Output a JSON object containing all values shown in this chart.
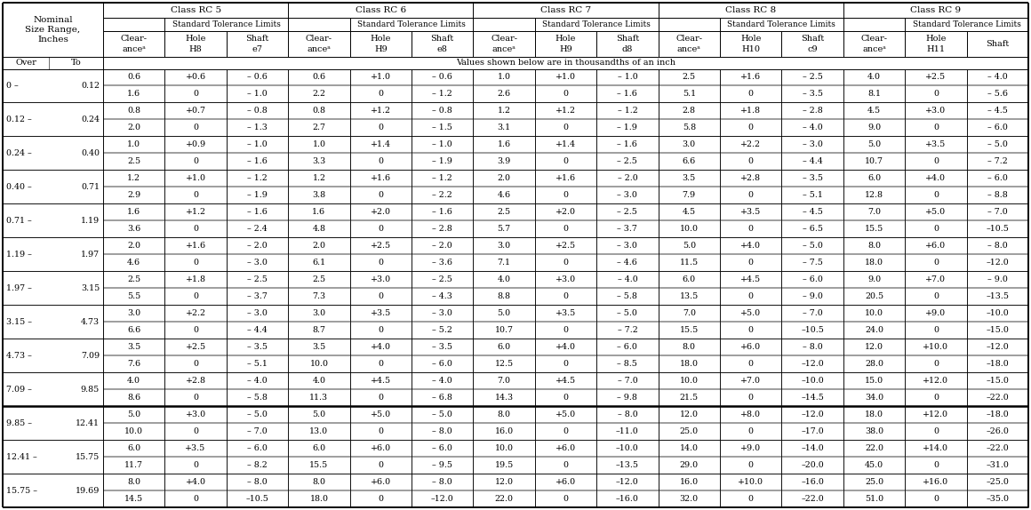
{
  "classes": [
    "Class RC 5",
    "Class RC 6",
    "Class RC 7",
    "Class RC 8",
    "Class RC 9"
  ],
  "std_tol": "Standard Tolerance Limits",
  "note": "Values shown below are in thousandths of an inch",
  "col_sub_headers": [
    [
      "Clear-\nanceᵃ",
      "Hole\nH8",
      "Shaft\ne7"
    ],
    [
      "Clear-\nanceᵃ",
      "Hole\nH9",
      "Shaft\ne8"
    ],
    [
      "Clear-\nanceᵃ",
      "Hole\nH9",
      "Shaft\nd8"
    ],
    [
      "Clear-\nanceᵃ",
      "Hole\nH10",
      "Shaft\nc9"
    ],
    [
      "Clear-\nanceᵃ",
      "Hole\nH11",
      "Shaft"
    ]
  ],
  "row_ranges": [
    [
      "0 –",
      "0.12"
    ],
    [
      "0.12 –",
      "0.24"
    ],
    [
      "0.24 –",
      "0.40"
    ],
    [
      "0.40 –",
      "0.71"
    ],
    [
      "0.71 –",
      "1.19"
    ],
    [
      "1.19 –",
      "1.97"
    ],
    [
      "1.97 –",
      "3.15"
    ],
    [
      "3.15 –",
      "4.73"
    ],
    [
      "4.73 –",
      "7.09"
    ],
    [
      "7.09 –",
      "9.85"
    ],
    [
      "9.85 –",
      "12.41"
    ],
    [
      "12.41 –",
      "15.75"
    ],
    [
      "15.75 –",
      "19.69"
    ]
  ],
  "data": [
    [
      "0.6",
      "1.6",
      "+0.6",
      "0",
      "– 0.6",
      "– 1.0",
      "0.6",
      "2.2",
      "+1.0",
      "0",
      "– 0.6",
      "– 1.2",
      "1.0",
      "2.6",
      "+1.0",
      "0",
      "– 1.0",
      "– 1.6",
      "2.5",
      "5.1",
      "+1.6",
      "0",
      "– 2.5",
      "– 3.5",
      "4.0",
      "8.1",
      "+2.5",
      "0",
      "– 4.0",
      "– 5.6"
    ],
    [
      "0.8",
      "2.0",
      "+0.7",
      "0",
      "– 0.8",
      "– 1.3",
      "0.8",
      "2.7",
      "+1.2",
      "0",
      "– 0.8",
      "– 1.5",
      "1.2",
      "3.1",
      "+1.2",
      "0",
      "– 1.2",
      "– 1.9",
      "2.8",
      "5.8",
      "+1.8",
      "0",
      "– 2.8",
      "– 4.0",
      "4.5",
      "9.0",
      "+3.0",
      "0",
      "– 4.5",
      "– 6.0"
    ],
    [
      "1.0",
      "2.5",
      "+0.9",
      "0",
      "– 1.0",
      "– 1.6",
      "1.0",
      "3.3",
      "+1.4",
      "0",
      "– 1.0",
      "– 1.9",
      "1.6",
      "3.9",
      "+1.4",
      "0",
      "– 1.6",
      "– 2.5",
      "3.0",
      "6.6",
      "+2.2",
      "0",
      "– 3.0",
      "– 4.4",
      "5.0",
      "10.7",
      "+3.5",
      "0",
      "– 5.0",
      "– 7.2"
    ],
    [
      "1.2",
      "2.9",
      "+1.0",
      "0",
      "– 1.2",
      "– 1.9",
      "1.2",
      "3.8",
      "+1.6",
      "0",
      "– 1.2",
      "– 2.2",
      "2.0",
      "4.6",
      "+1.6",
      "0",
      "– 2.0",
      "– 3.0",
      "3.5",
      "7.9",
      "+2.8",
      "0",
      "– 3.5",
      "– 5.1",
      "6.0",
      "12.8",
      "+4.0",
      "0",
      "– 6.0",
      "– 8.8"
    ],
    [
      "1.6",
      "3.6",
      "+1.2",
      "0",
      "– 1.6",
      "– 2.4",
      "1.6",
      "4.8",
      "+2.0",
      "0",
      "– 1.6",
      "– 2.8",
      "2.5",
      "5.7",
      "+2.0",
      "0",
      "– 2.5",
      "– 3.7",
      "4.5",
      "10.0",
      "+3.5",
      "0",
      "– 4.5",
      "– 6.5",
      "7.0",
      "15.5",
      "+5.0",
      "0",
      "– 7.0",
      "–10.5"
    ],
    [
      "2.0",
      "4.6",
      "+1.6",
      "0",
      "– 2.0",
      "– 3.0",
      "2.0",
      "6.1",
      "+2.5",
      "0",
      "– 2.0",
      "– 3.6",
      "3.0",
      "7.1",
      "+2.5",
      "0",
      "– 3.0",
      "– 4.6",
      "5.0",
      "11.5",
      "+4.0",
      "0",
      "– 5.0",
      "– 7.5",
      "8.0",
      "18.0",
      "+6.0",
      "0",
      "– 8.0",
      "–12.0"
    ],
    [
      "2.5",
      "5.5",
      "+1.8",
      "0",
      "– 2.5",
      "– 3.7",
      "2.5",
      "7.3",
      "+3.0",
      "0",
      "– 2.5",
      "– 4.3",
      "4.0",
      "8.8",
      "+3.0",
      "0",
      "– 4.0",
      "– 5.8",
      "6.0",
      "13.5",
      "+4.5",
      "0",
      "– 6.0",
      "– 9.0",
      "9.0",
      "20.5",
      "+7.0",
      "0",
      "– 9.0",
      "–13.5"
    ],
    [
      "3.0",
      "6.6",
      "+2.2",
      "0",
      "– 3.0",
      "– 4.4",
      "3.0",
      "8.7",
      "+3.5",
      "0",
      "– 3.0",
      "– 5.2",
      "5.0",
      "10.7",
      "+3.5",
      "0",
      "– 5.0",
      "– 7.2",
      "7.0",
      "15.5",
      "+5.0",
      "0",
      "– 7.0",
      "–10.5",
      "10.0",
      "24.0",
      "+9.0",
      "0",
      "–10.0",
      "–15.0"
    ],
    [
      "3.5",
      "7.6",
      "+2.5",
      "0",
      "– 3.5",
      "– 5.1",
      "3.5",
      "10.0",
      "+4.0",
      "0",
      "– 3.5",
      "– 6.0",
      "6.0",
      "12.5",
      "+4.0",
      "0",
      "– 6.0",
      "– 8.5",
      "8.0",
      "18.0",
      "+6.0",
      "0",
      "– 8.0",
      "–12.0",
      "12.0",
      "28.0",
      "+10.0",
      "0",
      "–12.0",
      "–18.0"
    ],
    [
      "4.0",
      "8.6",
      "+2.8",
      "0",
      "– 4.0",
      "– 5.8",
      "4.0",
      "11.3",
      "+4.5",
      "0",
      "– 4.0",
      "– 6.8",
      "7.0",
      "14.3",
      "+4.5",
      "0",
      "– 7.0",
      "– 9.8",
      "10.0",
      "21.5",
      "+7.0",
      "0",
      "–10.0",
      "–14.5",
      "15.0",
      "34.0",
      "+12.0",
      "0",
      "–15.0",
      "–22.0"
    ],
    [
      "5.0",
      "10.0",
      "+3.0",
      "0",
      "– 5.0",
      "– 7.0",
      "5.0",
      "13.0",
      "+5.0",
      "0",
      "– 5.0",
      "– 8.0",
      "8.0",
      "16.0",
      "+5.0",
      "0",
      "– 8.0",
      "–11.0",
      "12.0",
      "25.0",
      "+8.0",
      "0",
      "–12.0",
      "–17.0",
      "18.0",
      "38.0",
      "+12.0",
      "0",
      "–18.0",
      "–26.0"
    ],
    [
      "6.0",
      "11.7",
      "+3.5",
      "0",
      "– 6.0",
      "– 8.2",
      "6.0",
      "15.5",
      "+6.0",
      "0",
      "– 6.0",
      "– 9.5",
      "10.0",
      "19.5",
      "+6.0",
      "0",
      "–10.0",
      "–13.5",
      "14.0",
      "29.0",
      "+9.0",
      "0",
      "–14.0",
      "–20.0",
      "22.0",
      "45.0",
      "+14.0",
      "0",
      "–22.0",
      "–31.0"
    ],
    [
      "8.0",
      "14.5",
      "+4.0",
      "0",
      "– 8.0",
      "–10.5",
      "8.0",
      "18.0",
      "+6.0",
      "0",
      "– 8.0",
      "–12.0",
      "12.0",
      "22.0",
      "+6.0",
      "0",
      "–12.0",
      "–16.0",
      "16.0",
      "32.0",
      "+10.0",
      "0",
      "–16.0",
      "–22.0",
      "25.0",
      "51.0",
      "+16.0",
      "0",
      "–25.0",
      "–35.0"
    ]
  ],
  "bold_line_after_row": 10,
  "bg_color": "#ffffff",
  "line_color": "#000000",
  "fontsize_header": 7.5,
  "fontsize_subheader": 7.0,
  "fontsize_data": 6.8,
  "fontsize_note": 7.0
}
